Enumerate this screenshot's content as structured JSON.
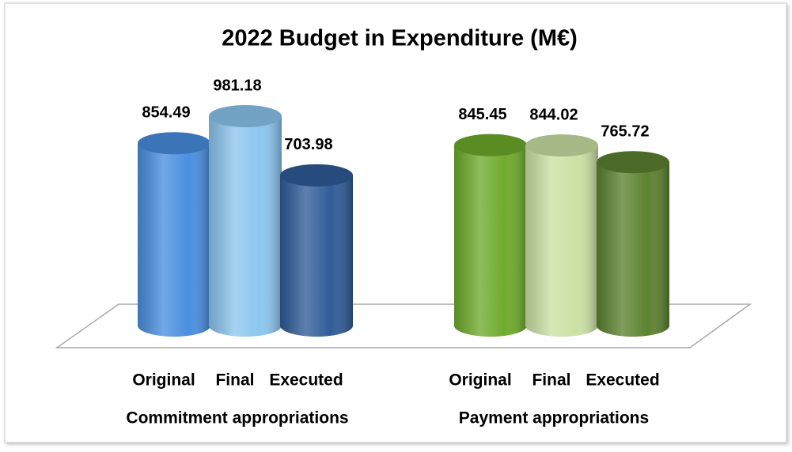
{
  "chart_data": {
    "type": "bar",
    "title": "2022  Budget  in Expenditure (M€)",
    "groups": [
      {
        "name": "Commitment appropriations",
        "categories": [
          "Original",
          "Final",
          "Executed"
        ],
        "values": [
          854.49,
          981.18,
          703.98
        ],
        "colors": [
          "#4a8fe0",
          "#8cc6ef",
          "#2f5c98"
        ]
      },
      {
        "name": "Payment appropriations",
        "categories": [
          "Original",
          "Final",
          "Executed"
        ],
        "values": [
          845.45,
          844.02,
          765.72
        ],
        "colors": [
          "#6eab2c",
          "#cbe2a4",
          "#5d8230"
        ]
      }
    ]
  }
}
